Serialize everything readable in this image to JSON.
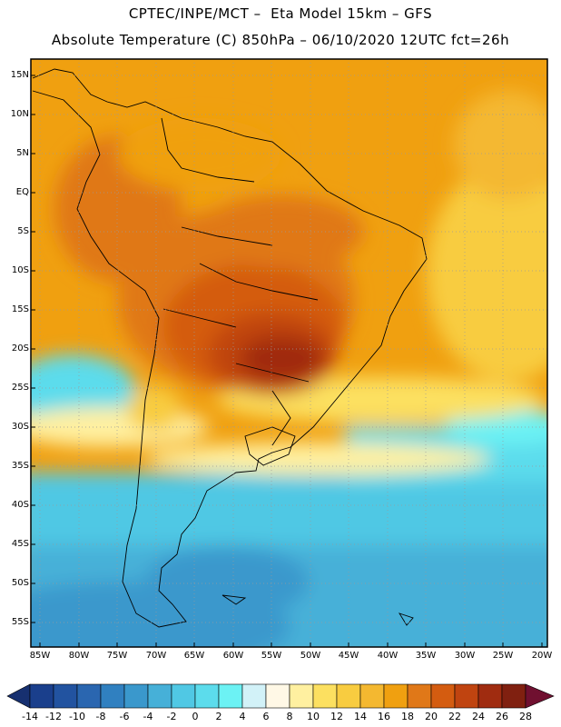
{
  "header": {
    "line1": "CPTEC/INPE/MCT –  Eta Model 15km – GFS",
    "line2": "Absolute Temperature (C) 850hPa – 06/10/2020 12UTC fct=26h"
  },
  "map": {
    "lat_ticks": [
      "15N",
      "10N",
      "5N",
      "EQ",
      "5S",
      "10S",
      "15S",
      "20S",
      "25S",
      "30S",
      "35S",
      "40S",
      "45S",
      "50S",
      "55S"
    ],
    "lon_ticks": [
      "85W",
      "80W",
      "75W",
      "70W",
      "65W",
      "60W",
      "55W",
      "50W",
      "45W",
      "40W",
      "35W",
      "30W",
      "25W",
      "20W"
    ]
  },
  "colorbar": {
    "labels": [
      "-14",
      "-12",
      "-10",
      "-8",
      "-6",
      "-4",
      "-2",
      "0",
      "2",
      "4",
      "6",
      "8",
      "10",
      "12",
      "14",
      "16",
      "18",
      "20",
      "22",
      "24",
      "26",
      "28"
    ],
    "colors": [
      "#1a3f8c",
      "#2253a0",
      "#2a66b0",
      "#3080c0",
      "#3a98cc",
      "#46b0d8",
      "#50c8e4",
      "#5cdcec",
      "#6cf2f4",
      "#d2f2f8",
      "#fff8e6",
      "#fff0a0",
      "#fce060",
      "#f8cc40",
      "#f4b830",
      "#f0a010",
      "#e07818",
      "#d45c10",
      "#c04410",
      "#a02c10",
      "#802010"
    ]
  }
}
